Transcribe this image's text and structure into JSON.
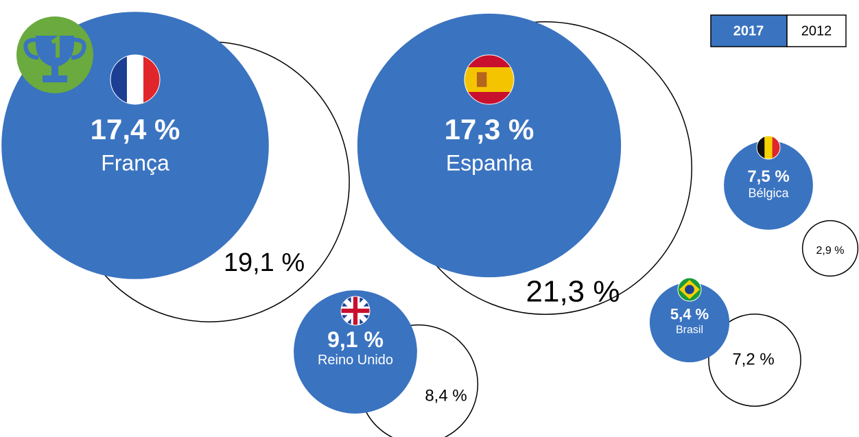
{
  "chart_data": {
    "type": "bubble",
    "categories": [
      "França",
      "Espanha",
      "Reino Unido",
      "Bélgica",
      "Brasil"
    ],
    "series": [
      {
        "name": "2017",
        "color": "#3a73c0",
        "values": [
          17.4,
          17.3,
          9.1,
          7.5,
          5.4
        ],
        "value_labels": [
          "17,4 %",
          "17,3 %",
          "9,1 %",
          "7,5 %",
          "5,4 %"
        ]
      },
      {
        "name": "2012",
        "color": "#ffffff",
        "values": [
          19.1,
          21.3,
          8.4,
          2.9,
          7.2
        ],
        "value_labels": [
          "19,1 %",
          "21,3 %",
          "8,4 %",
          "2,9 %",
          "7,2 %"
        ]
      }
    ]
  }
}
